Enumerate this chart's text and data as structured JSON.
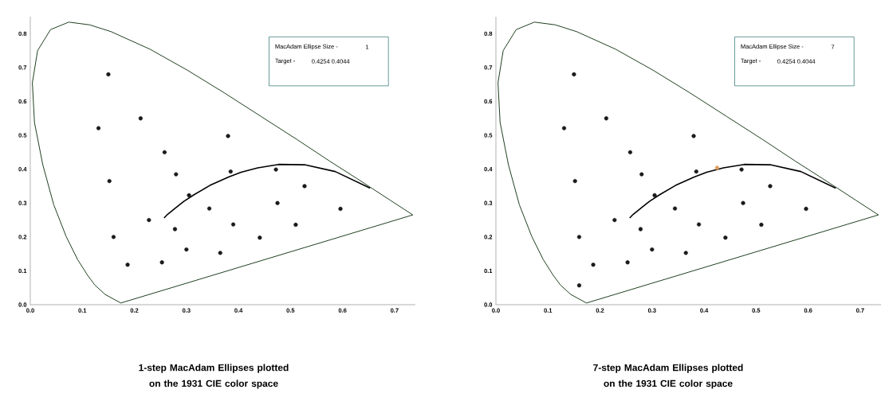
{
  "chart_data": [
    {
      "type": "scatter",
      "title": "1-step MacAdam Ellipses plotted on the 1931 CIE color space",
      "annotations": [
        "MacAdam Ellipse Size -",
        "1",
        "Target -",
        "0.4254 0.4044"
      ],
      "xlim": [
        0,
        0.74
      ],
      "ylim": [
        0,
        0.85
      ],
      "xticks": [
        {
          "value": 0,
          "label": "0.0"
        },
        0.1,
        0.2,
        0.3,
        0.4,
        0.5,
        0.6,
        0.7
      ],
      "yticks": [
        {
          "value": 0,
          "label": "0.0"
        },
        0.1,
        0.2,
        0.3,
        0.4,
        0.5,
        0.6,
        0.7,
        0.8
      ],
      "series": [
        {
          "type": "line",
          "color": "#1f3f1f",
          "x": [
            0.174,
            0.144,
            0.124,
            0.11,
            0.091,
            0.069,
            0.045,
            0.024,
            0.008,
            0.004,
            0.014,
            0.039,
            0.074,
            0.114,
            0.155,
            0.23,
            0.302,
            0.373,
            0.444,
            0.513,
            0.575,
            0.627,
            0.692,
            0.735
          ],
          "values": [
            0.005,
            0.03,
            0.058,
            0.087,
            0.133,
            0.201,
            0.295,
            0.413,
            0.538,
            0.655,
            0.75,
            0.812,
            0.834,
            0.826,
            0.806,
            0.754,
            0.692,
            0.625,
            0.555,
            0.487,
            0.424,
            0.373,
            0.308,
            0.265
          ]
        },
        {
          "type": "line",
          "color": "#000000",
          "x": [
            0.257,
            0.264,
            0.281,
            0.295,
            0.314,
            0.345,
            0.381,
            0.405,
            0.437,
            0.477,
            0.527,
            0.586,
            0.653
          ],
          "values": [
            0.256,
            0.267,
            0.288,
            0.305,
            0.324,
            0.352,
            0.377,
            0.391,
            0.404,
            0.414,
            0.413,
            0.393,
            0.344
          ]
        },
        {
          "type": "line",
          "color": "#1f3f1f",
          "x": [
            0.174,
            0.735
          ],
          "values": [
            0.005,
            0.265
          ]
        },
        {
          "color": "#1a1a1a",
          "marker": "circle",
          "x": [
            0.187,
            0.253,
            0.15,
            0.131,
            0.212,
            0.258,
            0.152,
            0.28,
            0.38,
            0.16,
            0.228,
            0.305,
            0.385,
            0.472,
            0.527,
            0.475,
            0.51,
            0.596,
            0.344,
            0.39,
            0.441,
            0.278,
            0.3,
            0.365
          ],
          "values": [
            0.118,
            0.125,
            0.68,
            0.521,
            0.55,
            0.45,
            0.365,
            0.385,
            0.498,
            0.2,
            0.25,
            0.323,
            0.393,
            0.399,
            0.35,
            0.3,
            0.236,
            0.283,
            0.284,
            0.237,
            0.198,
            0.223,
            0.163,
            0.153
          ]
        }
      ]
    },
    {
      "type": "scatter",
      "title": "7-step MacAdam Ellipses plotted on the 1931 CIE color space",
      "annotations": [
        "MacAdam Ellipse Size -",
        "7",
        "Target -",
        "0.4254 0.4044"
      ],
      "xlim": [
        0,
        0.74
      ],
      "ylim": [
        0,
        0.85
      ],
      "xticks": [
        {
          "value": 0,
          "label": "0.0"
        },
        0.1,
        0.2,
        0.3,
        0.4,
        0.5,
        0.6,
        0.7
      ],
      "yticks": [
        {
          "value": 0,
          "label": "0.0"
        },
        0.1,
        0.2,
        0.3,
        0.4,
        0.5,
        0.6,
        0.7,
        0.8
      ],
      "series": [
        {
          "type": "line",
          "color": "#1f3f1f",
          "x": [
            0.174,
            0.144,
            0.124,
            0.11,
            0.091,
            0.069,
            0.045,
            0.024,
            0.008,
            0.004,
            0.014,
            0.039,
            0.074,
            0.114,
            0.155,
            0.23,
            0.302,
            0.373,
            0.444,
            0.513,
            0.575,
            0.627,
            0.692,
            0.735
          ],
          "values": [
            0.005,
            0.03,
            0.058,
            0.087,
            0.133,
            0.201,
            0.295,
            0.413,
            0.538,
            0.655,
            0.75,
            0.812,
            0.834,
            0.826,
            0.806,
            0.754,
            0.692,
            0.625,
            0.555,
            0.487,
            0.424,
            0.373,
            0.308,
            0.265
          ]
        },
        {
          "type": "line",
          "color": "#000000",
          "x": [
            0.257,
            0.264,
            0.281,
            0.295,
            0.314,
            0.345,
            0.381,
            0.405,
            0.437,
            0.477,
            0.527,
            0.586,
            0.653
          ],
          "values": [
            0.256,
            0.267,
            0.288,
            0.305,
            0.324,
            0.352,
            0.377,
            0.391,
            0.404,
            0.414,
            0.413,
            0.393,
            0.344
          ]
        },
        {
          "type": "line",
          "color": "#1f3f1f",
          "x": [
            0.174,
            0.735
          ],
          "values": [
            0.005,
            0.265
          ]
        },
        {
          "color": "#1a1a1a",
          "marker": "circle",
          "x": [
            0.16,
            0.187,
            0.253,
            0.15,
            0.131,
            0.212,
            0.258,
            0.152,
            0.28,
            0.38,
            0.16,
            0.228,
            0.305,
            0.385,
            0.472,
            0.527,
            0.475,
            0.51,
            0.596,
            0.344,
            0.39,
            0.441,
            0.278,
            0.3,
            0.365
          ],
          "values": [
            0.057,
            0.118,
            0.125,
            0.68,
            0.521,
            0.55,
            0.45,
            0.365,
            0.385,
            0.498,
            0.2,
            0.25,
            0.323,
            0.393,
            0.399,
            0.35,
            0.3,
            0.236,
            0.283,
            0.284,
            0.237,
            0.198,
            0.223,
            0.163,
            0.153
          ]
        },
        {
          "color": "#e0a060",
          "marker": "circle",
          "x": [
            0.425
          ],
          "values": [
            0.404
          ]
        }
      ]
    }
  ]
}
